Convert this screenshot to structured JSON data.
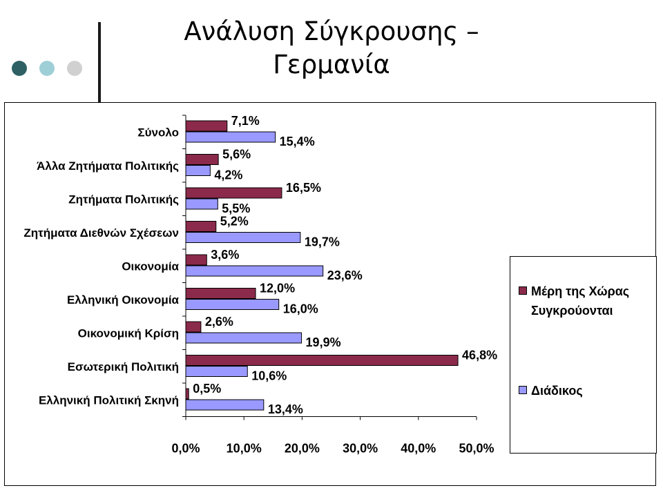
{
  "slide": {
    "title_line1": "Ανάλυση Σύγκρουσης –",
    "title_line2": "Γερμανία"
  },
  "colors": {
    "series1": "#8b2a4b",
    "series2": "#9999ff",
    "dot1": "#2f6164",
    "dot2": "#9fcfd6",
    "dot3": "#d0d0d0"
  },
  "chart_data": {
    "type": "bar",
    "orientation": "horizontal",
    "categories": [
      "Σύνολο",
      "Άλλα Ζητήματα Πολιτικής",
      "Ζητήματα Πολιτικής",
      "Ζητήματα Διεθνών Σχέσεων",
      "Οικονομία",
      "Ελληνική Οικονομία",
      "Οικονομική Κρίση",
      "Εσωτερική Πολιτική",
      "Ελληνική Πολιτική Σκηνή"
    ],
    "series": [
      {
        "name": "Μέρη της Χώρας Συγκρούονται",
        "values": [
          7.1,
          5.6,
          16.5,
          5.2,
          3.6,
          12.0,
          2.6,
          46.8,
          0.5
        ],
        "labels": [
          "7,1%",
          "5,6%",
          "16,5%",
          "5,2%",
          "3,6%",
          "12,0%",
          "2,6%",
          "46,8%",
          "0,5%"
        ]
      },
      {
        "name": "Διάδικος",
        "values": [
          15.4,
          4.2,
          5.5,
          19.7,
          23.6,
          16.0,
          19.9,
          10.6,
          13.4
        ],
        "labels": [
          "15,4%",
          "4,2%",
          "5,5%",
          "19,7%",
          "23,6%",
          "16,0%",
          "19,9%",
          "10,6%",
          "13,4%"
        ]
      }
    ],
    "xlim": [
      0,
      50
    ],
    "xticks": [
      0,
      10,
      20,
      30,
      40,
      50
    ],
    "xtick_labels": [
      "0,0%",
      "10,0%",
      "20,0%",
      "30,0%",
      "40,0%",
      "50,0%"
    ],
    "legend_position": "right",
    "grid": false
  }
}
